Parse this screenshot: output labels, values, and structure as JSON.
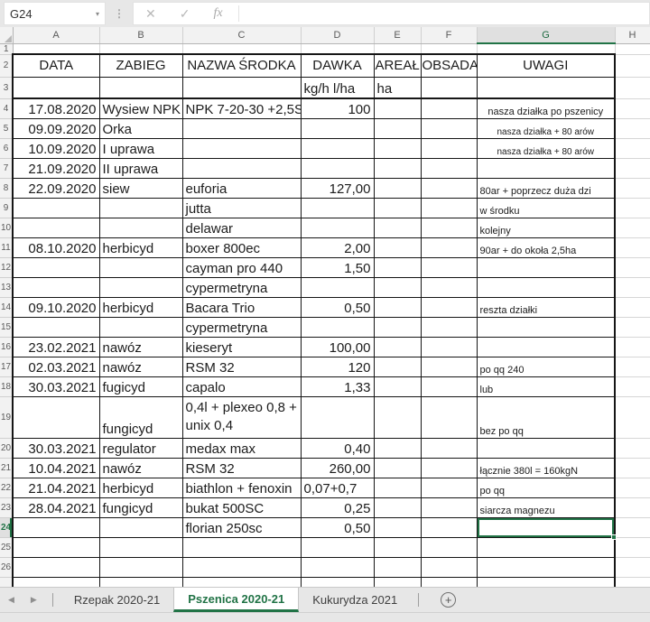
{
  "formula_bar": {
    "name_box": "G24",
    "formula_value": ""
  },
  "icons": {
    "name_dropdown": "▾",
    "dots": "⋮",
    "cancel": "✕",
    "enter": "✓",
    "fx": "fx",
    "scroll_left": "◀",
    "scroll_right": "▶",
    "add_sheet": "+"
  },
  "colors": {
    "accent_green": "#217346",
    "table_border": "#161616",
    "chrome_bg": "#e7e7e7"
  },
  "selection": {
    "cell": "G24",
    "column": "G",
    "row": "24"
  },
  "grid": {
    "columns": [
      "A",
      "B",
      "C",
      "D",
      "E",
      "F",
      "G",
      "H"
    ],
    "rows": [
      {
        "n": "1",
        "cells": [
          "",
          "",
          "",
          "",
          "",
          "",
          "",
          ""
        ]
      },
      {
        "n": "2",
        "cells": [
          "DATA",
          "ZABIEG",
          "NAZWA ŚRODKA",
          "DAWKA",
          "AREAŁ",
          "OBSADA",
          "UWAGI",
          ""
        ]
      },
      {
        "n": "3",
        "cells": [
          "",
          "",
          "",
          "kg/h l/ha",
          "ha",
          "",
          "",
          ""
        ]
      },
      {
        "n": "4",
        "cells": [
          "17.08.2020",
          "Wysiew NPK",
          "NPK 7-20-30 +2,5S",
          "100",
          "",
          "",
          "nasza działka po pszenicy",
          ""
        ]
      },
      {
        "n": "5",
        "cells": [
          "09.09.2020",
          "Orka",
          "",
          "",
          "",
          "",
          "nasza działka + 80 arów",
          ""
        ]
      },
      {
        "n": "6",
        "cells": [
          "10.09.2020",
          "I uprawa",
          "",
          "",
          "",
          "",
          "nasza działka + 80 arów",
          ""
        ]
      },
      {
        "n": "7",
        "cells": [
          "21.09.2020",
          "II uprawa",
          "",
          "",
          "",
          "",
          "",
          ""
        ]
      },
      {
        "n": "8",
        "cells": [
          "22.09.2020",
          "siew",
          "euforia",
          "127,00",
          "",
          "",
          "80ar + poprzecz duża dzi",
          ""
        ]
      },
      {
        "n": "9",
        "cells": [
          "",
          "",
          "jutta",
          "",
          "",
          "",
          "w środku",
          ""
        ]
      },
      {
        "n": "10",
        "cells": [
          "",
          "",
          "delawar",
          "",
          "",
          "",
          "kolejny",
          ""
        ]
      },
      {
        "n": "11",
        "cells": [
          "08.10.2020",
          "herbicyd",
          "boxer 800ec",
          "2,00",
          "",
          "",
          "90ar + do okoła 2,5ha",
          ""
        ]
      },
      {
        "n": "12",
        "cells": [
          "",
          "",
          "cayman pro 440",
          "1,50",
          "",
          "",
          "",
          ""
        ]
      },
      {
        "n": "13",
        "cells": [
          "",
          "",
          "cypermetryna",
          "",
          "",
          "",
          "",
          ""
        ]
      },
      {
        "n": "14",
        "cells": [
          "09.10.2020",
          "herbicyd",
          "Bacara Trio",
          "0,50",
          "",
          "",
          "reszta działki",
          ""
        ]
      },
      {
        "n": "15",
        "cells": [
          "",
          "",
          "cypermetryna",
          "",
          "",
          "",
          "",
          ""
        ]
      },
      {
        "n": "16",
        "cells": [
          "23.02.2021",
          "nawóz",
          "kieseryt",
          "100,00",
          "",
          "",
          "",
          ""
        ]
      },
      {
        "n": "17",
        "cells": [
          "02.03.2021",
          "nawóz",
          "RSM 32",
          "120",
          "",
          "",
          "po qq 240",
          ""
        ]
      },
      {
        "n": "18",
        "cells": [
          "30.03.2021",
          "fugicyd",
          "capalo",
          "1,33",
          "",
          "",
          "lub",
          ""
        ]
      },
      {
        "n": "19",
        "cells": [
          "",
          "fungicyd",
          "0,4l + plexeo 0,8 + unix 0,4",
          "",
          "",
          "",
          "bez po qq",
          ""
        ]
      },
      {
        "n": "20",
        "cells": [
          "30.03.2021",
          "regulator",
          "medax max",
          "0,40",
          "",
          "",
          "",
          ""
        ]
      },
      {
        "n": "21",
        "cells": [
          "10.04.2021",
          "nawóz",
          "RSM 32",
          "260,00",
          "",
          "",
          "łącznie 380l = 160kgN",
          ""
        ]
      },
      {
        "n": "22",
        "cells": [
          "21.04.2021",
          "herbicyd",
          "biathlon + fenoxin",
          "0,07+0,7",
          "",
          "",
          "po qq",
          ""
        ]
      },
      {
        "n": "23",
        "cells": [
          "28.04.2021",
          "fungicyd",
          "bukat 500SC",
          "0,25",
          "",
          "",
          "siarcza magnezu",
          ""
        ]
      },
      {
        "n": "24",
        "cells": [
          "",
          "",
          "florian 250sc",
          "0,50",
          "",
          "",
          "",
          ""
        ]
      },
      {
        "n": "25",
        "cells": [
          "",
          "",
          "",
          "",
          "",
          "",
          "",
          ""
        ]
      },
      {
        "n": "26",
        "cells": [
          "",
          "",
          "",
          "",
          "",
          "",
          "",
          ""
        ]
      }
    ]
  },
  "sheet_tabs": {
    "tabs": [
      "Rzepak 2020-21",
      "Pszenica 2020-21",
      "Kukurydza 2021"
    ],
    "active_index": 1
  }
}
